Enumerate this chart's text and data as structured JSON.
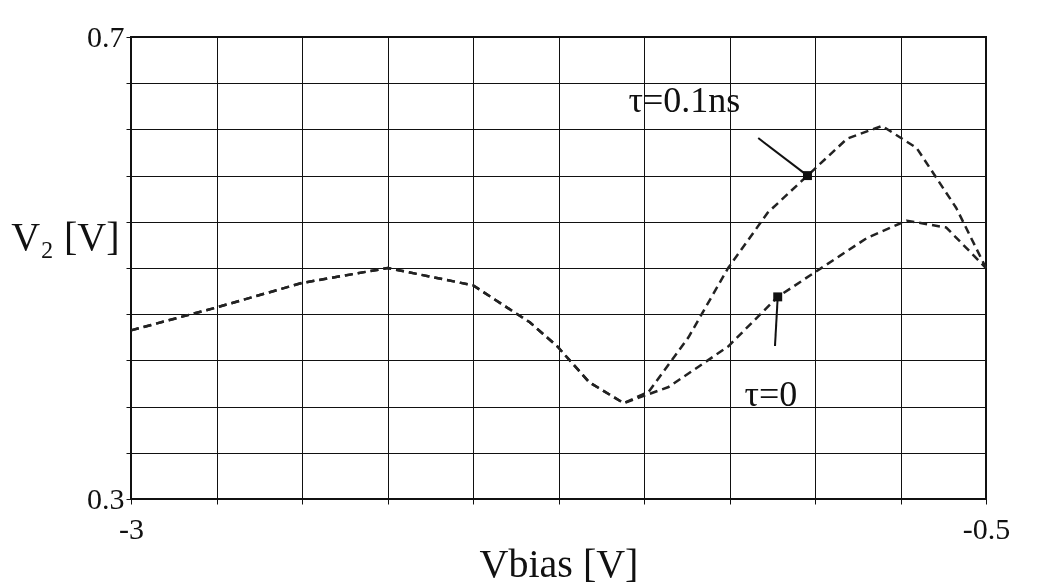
{
  "chart_data": {
    "type": "line",
    "xlabel": "Vbias [V]",
    "ylabel": "V₂ [V]",
    "xlim": [
      -3,
      -0.5
    ],
    "ylim": [
      0.3,
      0.7
    ],
    "xticks": [
      -3,
      {
        "value": -2.75,
        "label": null
      },
      {
        "value": -2.5,
        "label": null
      },
      {
        "value": -2.25,
        "label": null
      },
      {
        "value": -2,
        "label": null
      },
      {
        "value": -1.75,
        "label": null
      },
      {
        "value": -1.5,
        "label": null
      },
      {
        "value": -1.25,
        "label": null
      },
      {
        "value": -1,
        "label": null
      },
      {
        "value": -0.75,
        "label": null
      },
      -0.5
    ],
    "yticks": [
      0.3,
      {
        "value": 0.34,
        "label": null
      },
      {
        "value": 0.38,
        "label": null
      },
      {
        "value": 0.42,
        "label": null
      },
      {
        "value": 0.46,
        "label": null
      },
      {
        "value": 0.5,
        "label": null
      },
      {
        "value": 0.54,
        "label": null
      },
      {
        "value": 0.58,
        "label": null
      },
      {
        "value": 0.62,
        "label": null
      },
      {
        "value": 0.66,
        "label": null
      },
      0.7
    ],
    "grid": true,
    "line_style": "dashed",
    "marker": "none",
    "series": [
      {
        "color": "#222222",
        "x": [
          -3,
          -2.748,
          -2.501,
          -2.249,
          -2.0,
          -1.834,
          -1.753,
          -1.66,
          -1.559,
          -1.428,
          -1.254,
          -1.109,
          -1.002,
          -0.848,
          -0.732,
          -0.616,
          -0.5
        ],
        "values": [
          0.446,
          0.466,
          0.487,
          0.5,
          0.485,
          0.453,
          0.432,
          0.401,
          0.383,
          0.397,
          0.432,
          0.475,
          0.496,
          0.526,
          0.541,
          0.535,
          0.5
        ]
      },
      {
        "color": "#222222",
        "x": [
          -3,
          -2.748,
          -2.501,
          -2.249,
          -2.0,
          -1.834,
          -1.753,
          -1.66,
          -1.559,
          -1.486,
          -1.37,
          -1.254,
          -1.138,
          -1.022,
          -0.906,
          -0.804,
          -0.703,
          -0.587,
          -0.5
        ],
        "values": [
          0.446,
          0.466,
          0.487,
          0.5,
          0.485,
          0.453,
          0.432,
          0.401,
          0.383,
          0.393,
          0.44,
          0.5,
          0.548,
          0.58,
          0.612,
          0.623,
          0.604,
          0.552,
          0.5
        ]
      }
    ],
    "annotations": [
      {
        "text": "τ=0.1ns",
        "x": -1.022,
        "y": 0.58
      },
      {
        "text": "τ=0",
        "x": -1.109,
        "y": 0.475
      }
    ]
  }
}
